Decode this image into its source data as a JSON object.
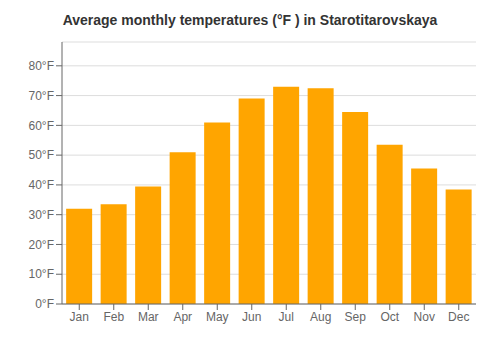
{
  "chart_data": {
    "type": "bar",
    "title": "Average monthly temperatures (°F ) in Starotitarovskaya",
    "categories": [
      "Jan",
      "Feb",
      "Mar",
      "Apr",
      "May",
      "Jun",
      "Jul",
      "Aug",
      "Sep",
      "Oct",
      "Nov",
      "Dec"
    ],
    "values": [
      32,
      33.5,
      39.5,
      51,
      61,
      69,
      73,
      72.5,
      64.5,
      53.5,
      45.5,
      38.5
    ],
    "color": "#FFA500",
    "ylim": [
      0,
      88
    ],
    "yticks": [
      {
        "value": 0,
        "label": "0°F"
      },
      {
        "value": 10,
        "label": "10°F"
      },
      {
        "value": 20,
        "label": "20°F"
      },
      {
        "value": 30,
        "label": "30°F"
      },
      {
        "value": 40,
        "label": "40°F"
      },
      {
        "value": 50,
        "label": "50°F"
      },
      {
        "value": 60,
        "label": "60°F"
      },
      {
        "value": 70,
        "label": "70°F"
      },
      {
        "value": 80,
        "label": "80°F"
      }
    ],
    "grid": true
  }
}
